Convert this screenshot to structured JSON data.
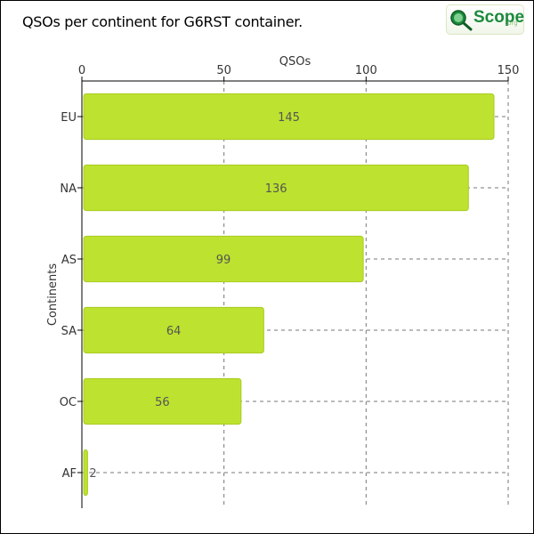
{
  "header": {
    "title": "QSOs per continent for G6RST container.",
    "logo_text": "Scope",
    "logo_sub": ".org"
  },
  "colors": {
    "bar": "#bde22f",
    "bar_edge": "#a9cc22",
    "grid": "#777777",
    "logo_green": "#1b8a3c"
  },
  "icons": {
    "logo": "magnifier-q-icon"
  },
  "chart_data": {
    "type": "bar",
    "orientation": "horizontal",
    "categories": [
      "EU",
      "NA",
      "AS",
      "SA",
      "OC",
      "AF"
    ],
    "values": [
      145,
      136,
      99,
      64,
      56,
      2
    ],
    "xlabel": "QSOs",
    "ylabel": "Continents",
    "xlim": [
      0,
      150
    ],
    "xticks": [
      0,
      50,
      100,
      150
    ],
    "x_axis_position": "top",
    "grid": true,
    "data_labels": true
  }
}
